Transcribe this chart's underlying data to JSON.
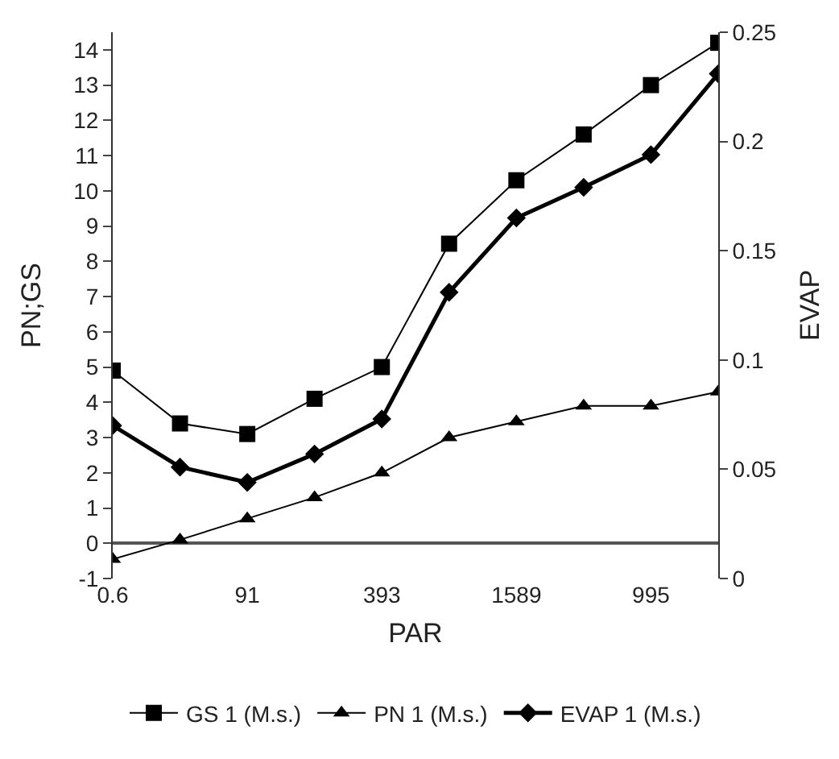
{
  "chart_data": {
    "type": "line",
    "xlabel": "PAR",
    "ylabel": "PN;GS",
    "y2label": "EVAP",
    "categories": [
      "0.6",
      null,
      "91",
      null,
      "393",
      null,
      "1589",
      null,
      "995",
      null
    ],
    "series": [
      {
        "name": "GS 1 (M.s.)",
        "color": "#000000",
        "marker": "square",
        "values": [
          4.9,
          3.4,
          3.1,
          4.1,
          5.0,
          8.5,
          10.3,
          11.6,
          13.0,
          14.2
        ]
      },
      {
        "name": "PN 1 (M.s.)",
        "color": "#000000",
        "marker": "triangle",
        "values": [
          -0.45,
          0.1,
          0.7,
          1.3,
          2.0,
          3.0,
          3.45,
          3.9,
          3.9,
          4.3
        ]
      },
      {
        "name": "EVAP 1 (M.s.)",
        "color": "#000000",
        "marker": "diamond",
        "axis": "y2",
        "values": [
          0.07,
          0.051,
          0.044,
          0.057,
          0.073,
          0.131,
          0.165,
          0.179,
          0.194,
          0.231
        ]
      }
    ],
    "ylim": [
      -1,
      14.5
    ],
    "yticks": [
      -1,
      0,
      1,
      2,
      3,
      4,
      5,
      6,
      7,
      8,
      9,
      10,
      11,
      12,
      13,
      14
    ],
    "y2lim": [
      0,
      0.25
    ],
    "y2ticks": [
      0,
      0.05,
      0.1,
      0.15,
      0.2,
      0.25
    ],
    "legend": "bottom",
    "line_style": "solid"
  }
}
